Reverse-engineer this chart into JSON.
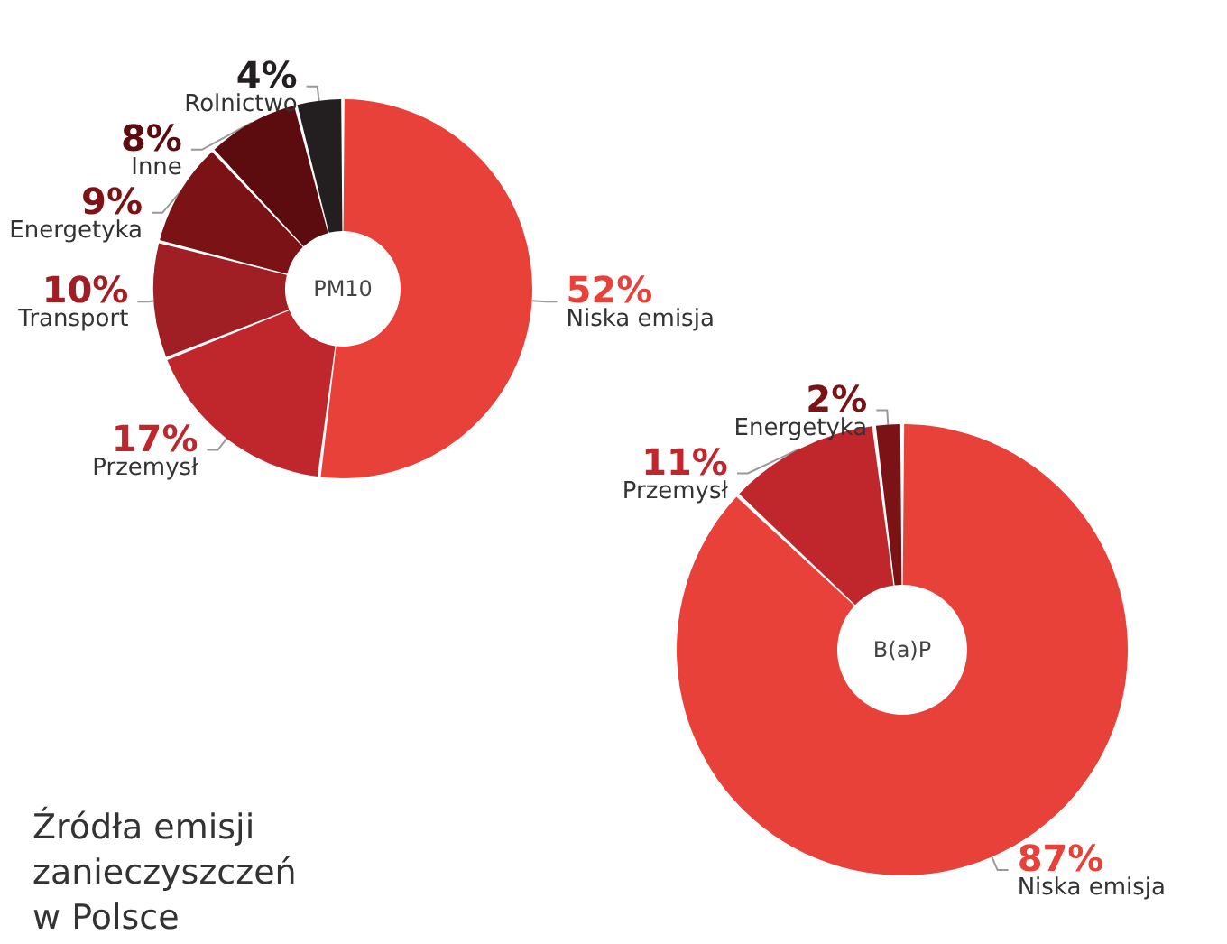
{
  "chart_data": [
    {
      "type": "donut",
      "title": "PM10",
      "categories": [
        "Niska emisja",
        "Przemysł",
        "Transport",
        "Energetyka",
        "Inne",
        "Rolnictwo"
      ],
      "values": [
        52,
        17,
        10,
        9,
        8,
        4
      ],
      "value_labels": [
        "52%",
        "17%",
        "10%",
        "9%",
        "8%",
        "4%"
      ],
      "colors": [
        "#e8413a",
        "#c0272d",
        "#a01f24",
        "#7a1216",
        "#5c0b0e",
        "#231f20"
      ],
      "legend": false
    },
    {
      "type": "donut",
      "title": "B(a)P",
      "categories": [
        "Niska emisja",
        "Przemysł",
        "Energetyka"
      ],
      "values": [
        87,
        11,
        2
      ],
      "value_labels": [
        "87%",
        "11%",
        "2%"
      ],
      "colors": [
        "#e8413a",
        "#c0272d",
        "#7a1216"
      ],
      "legend": false,
      "annotations": [
        "Źródła emisji\nzanieczyszczeń\nw Polsce"
      ]
    }
  ]
}
